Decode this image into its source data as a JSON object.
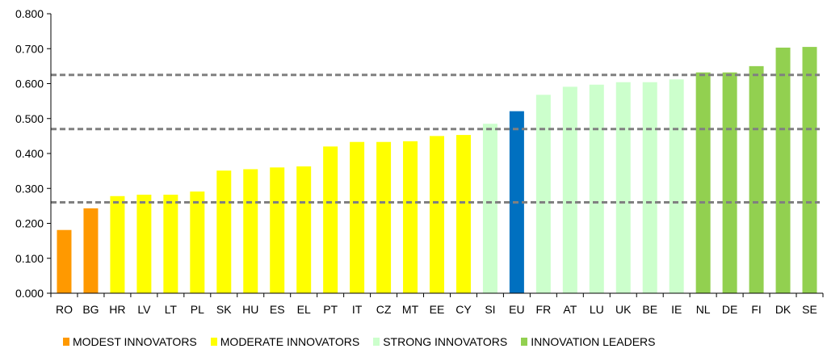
{
  "chart_data": {
    "type": "bar",
    "title": "",
    "xlabel": "",
    "ylabel": "",
    "ylim": [
      0,
      0.8
    ],
    "yticks": [
      "0.000",
      "0.100",
      "0.200",
      "0.300",
      "0.400",
      "0.500",
      "0.600",
      "0.700",
      "0.800"
    ],
    "grid": false,
    "categories": [
      "RO",
      "BG",
      "HR",
      "LV",
      "LT",
      "PL",
      "SK",
      "HU",
      "ES",
      "EL",
      "PT",
      "IT",
      "CZ",
      "MT",
      "EE",
      "CY",
      "SI",
      "EU",
      "FR",
      "AT",
      "LU",
      "UK",
      "BE",
      "IE",
      "NL",
      "DE",
      "FI",
      "DK",
      "SE"
    ],
    "values": [
      0.181,
      0.243,
      0.278,
      0.282,
      0.282,
      0.291,
      0.351,
      0.355,
      0.36,
      0.363,
      0.42,
      0.433,
      0.433,
      0.435,
      0.45,
      0.453,
      0.485,
      0.521,
      0.568,
      0.591,
      0.597,
      0.604,
      0.604,
      0.612,
      0.632,
      0.632,
      0.65,
      0.703,
      0.705
    ],
    "groups": [
      "modest",
      "modest",
      "moderate",
      "moderate",
      "moderate",
      "moderate",
      "moderate",
      "moderate",
      "moderate",
      "moderate",
      "moderate",
      "moderate",
      "moderate",
      "moderate",
      "moderate",
      "moderate",
      "strong",
      "eu",
      "strong",
      "strong",
      "strong",
      "strong",
      "strong",
      "strong",
      "leader",
      "leader",
      "leader",
      "leader",
      "leader"
    ],
    "group_colors": {
      "modest": "#FF9900",
      "moderate": "#FFFF00",
      "strong": "#CCFFCC",
      "eu": "#0070C0",
      "leader": "#92D050"
    },
    "reference_lines": [
      0.26,
      0.47,
      0.625
    ],
    "reference_line_color": "#808080",
    "legend_position": "bottom",
    "legend": [
      {
        "label": "MODEST INNOVATORS",
        "color": "#FF9900"
      },
      {
        "label": "MODERATE INNOVATORS",
        "color": "#FFFF00"
      },
      {
        "label": "STRONG INNOVATORS",
        "color": "#CCFFCC"
      },
      {
        "label": "INNOVATION LEADERS",
        "color": "#92D050"
      }
    ]
  }
}
